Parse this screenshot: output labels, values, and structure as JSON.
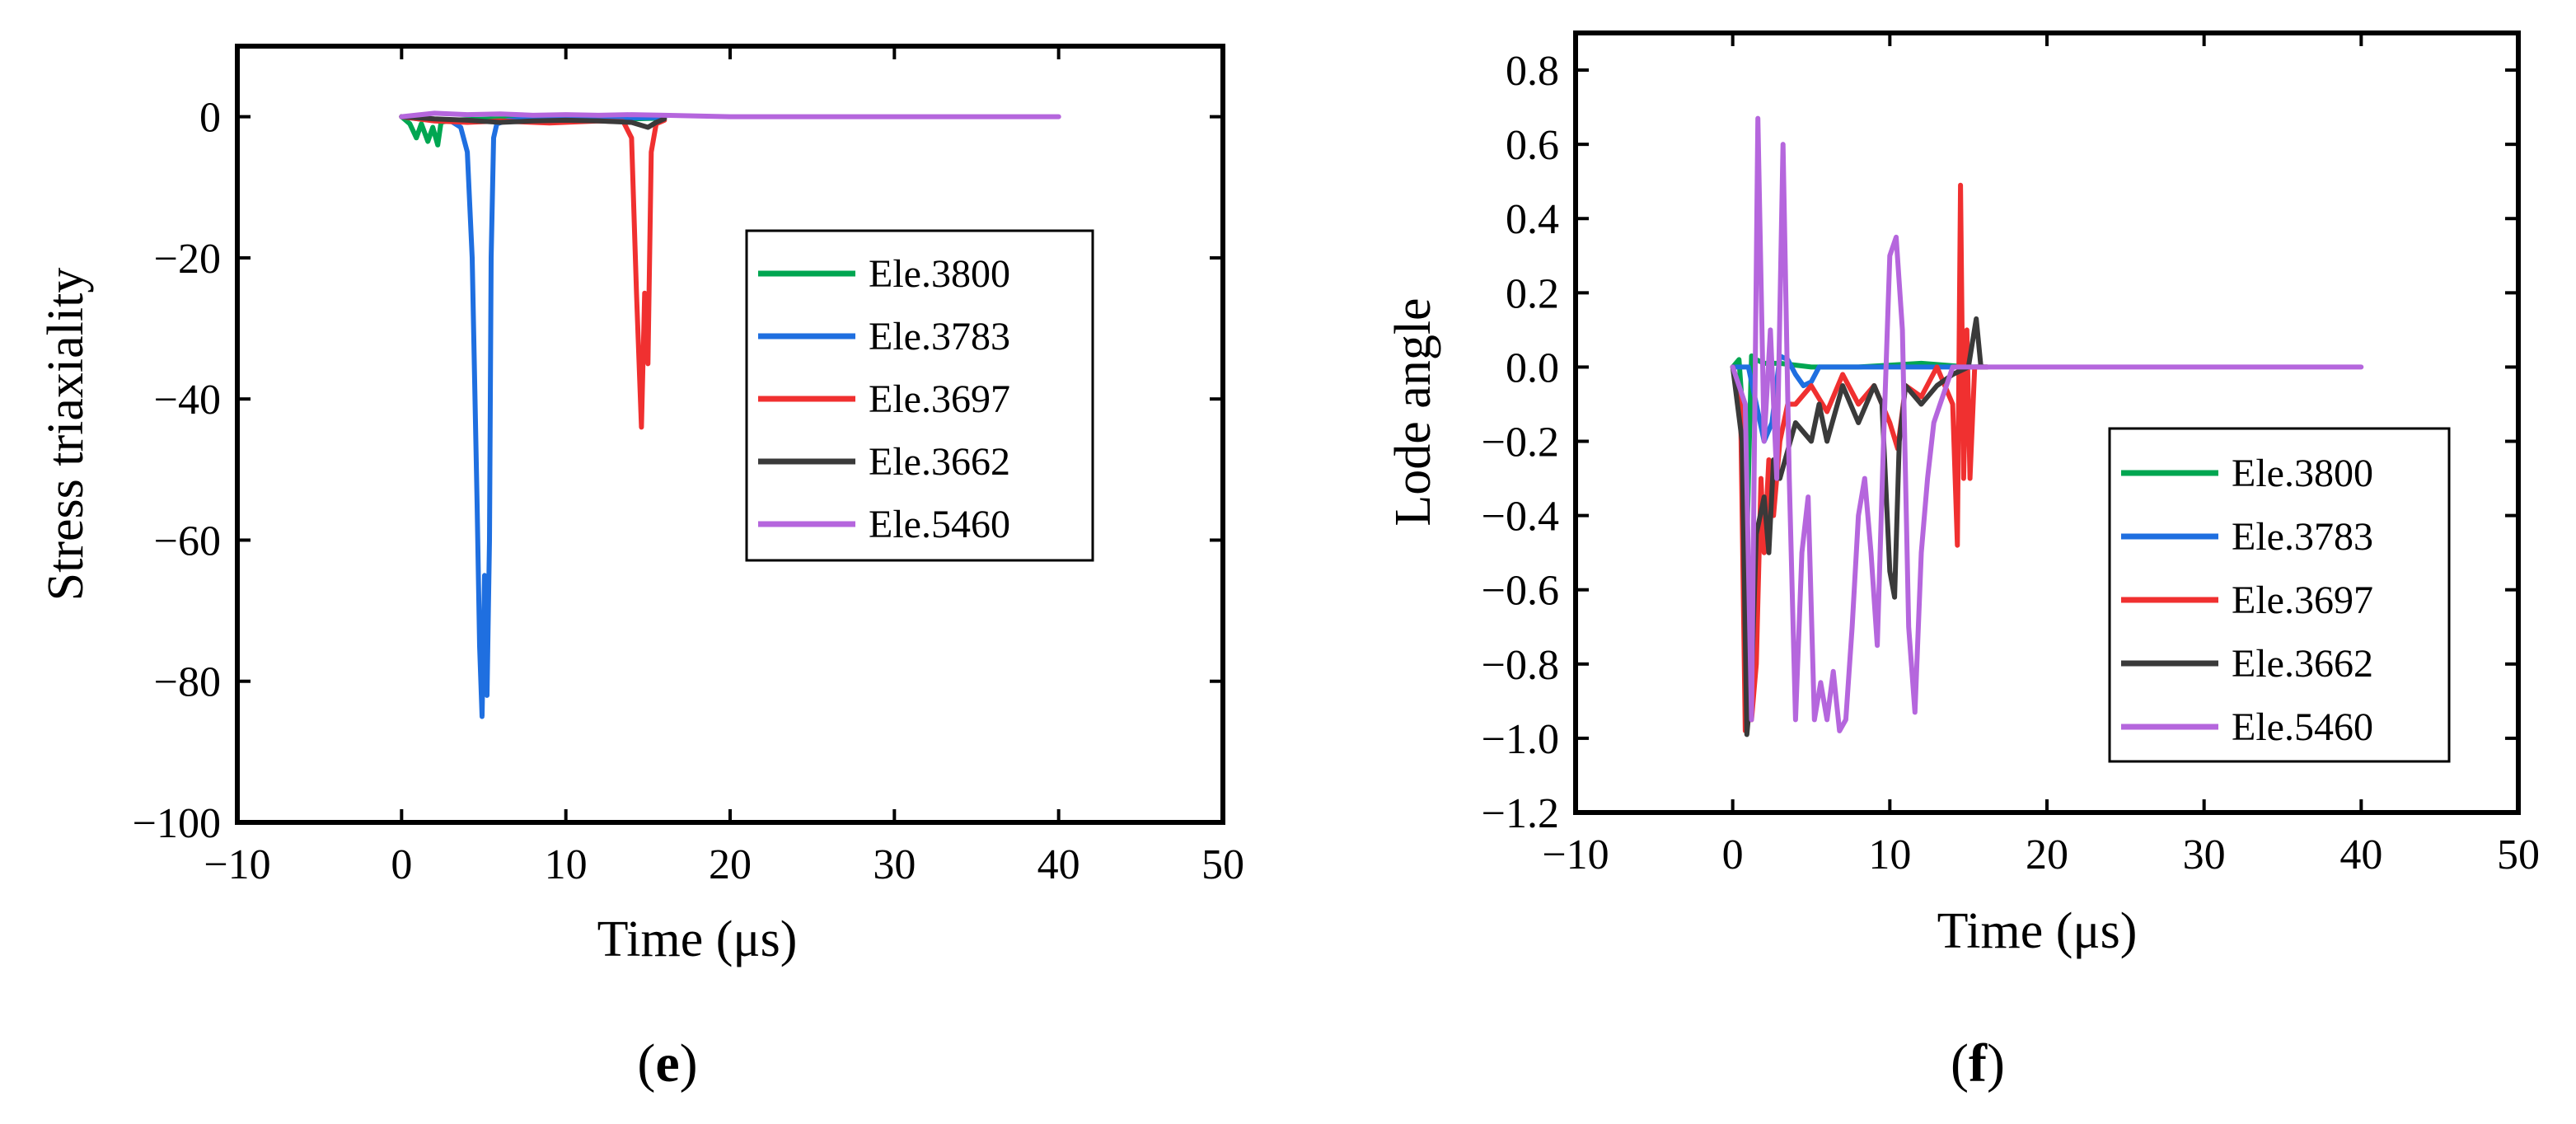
{
  "chart_data": [
    {
      "type": "line",
      "panel_label": "e",
      "xlabel": "Time (μs)",
      "ylabel": "Stress triaxiality",
      "xlim": [
        -10,
        50
      ],
      "ylim": [
        -100,
        10
      ],
      "xticks": [
        -10,
        0,
        10,
        20,
        30,
        40,
        50
      ],
      "yticks": [
        0,
        -20,
        -40,
        -60,
        -80,
        -100
      ],
      "legend_position": "center-right",
      "series": [
        {
          "name": "Ele.3800",
          "color": "#00a651",
          "x": [
            0,
            0.5,
            0.9,
            1.2,
            1.6,
            1.9,
            2.2,
            2.4,
            3.0,
            4.0,
            6.0,
            10.0,
            14.0,
            16.0
          ],
          "y": [
            0,
            -1.0,
            -3.0,
            -1.0,
            -3.5,
            -1.5,
            -4.0,
            -0.8,
            -0.5,
            -0.4,
            -0.3,
            -0.3,
            -0.3,
            -0.2
          ]
        },
        {
          "name": "Ele.3783",
          "color": "#1f6fe0",
          "x": [
            0,
            1.0,
            2.0,
            3.0,
            3.6,
            4.0,
            4.3,
            4.6,
            4.75,
            4.9,
            5.05,
            5.2,
            5.35,
            5.45,
            5.6,
            5.8,
            6.5,
            8.0,
            12.0,
            16.0
          ],
          "y": [
            0,
            -0.3,
            -0.5,
            -0.6,
            -1.5,
            -5,
            -20,
            -55,
            -75,
            -85,
            -65,
            -82,
            -60,
            -20,
            -3,
            -1,
            -0.5,
            -0.3,
            -0.2,
            -0.1
          ]
        },
        {
          "name": "Ele.3697",
          "color": "#f03030",
          "x": [
            0,
            2.0,
            4.0,
            6.0,
            9.0,
            12.0,
            13.5,
            14.0,
            14.3,
            14.6,
            14.8,
            15.0,
            15.2,
            15.5,
            16.0
          ],
          "y": [
            0,
            -0.6,
            -0.8,
            -0.6,
            -0.9,
            -0.6,
            -0.7,
            -3,
            -25,
            -44,
            -25,
            -35,
            -5,
            -1,
            -0.5
          ]
        },
        {
          "name": "Ele.3662",
          "color": "#3a3a3a",
          "x": [
            0,
            2.0,
            4.0,
            6.0,
            8.0,
            10.0,
            12.0,
            14.0,
            15.0,
            15.5,
            16.0
          ],
          "y": [
            0,
            -0.3,
            -0.5,
            -0.8,
            -0.6,
            -0.5,
            -0.6,
            -0.8,
            -1.5,
            -0.8,
            -0.3
          ]
        },
        {
          "name": "Ele.5460",
          "color": "#b566dd",
          "x": [
            0,
            2.0,
            4.0,
            6.0,
            8.0,
            10.0,
            12.0,
            14.0,
            16.0,
            20.0,
            25.0,
            30.0,
            35.0,
            40.0
          ],
          "y": [
            0,
            0.5,
            0.3,
            0.4,
            0.2,
            0.3,
            0.2,
            0.3,
            0.2,
            0,
            0,
            0,
            0,
            0
          ]
        }
      ]
    },
    {
      "type": "line",
      "panel_label": "f",
      "xlabel": "Time (μs)",
      "ylabel": "Lode angle",
      "xlim": [
        -10,
        50
      ],
      "ylim": [
        -1.2,
        0.9
      ],
      "xticks": [
        -10,
        0,
        10,
        20,
        30,
        40,
        50
      ],
      "yticks": [
        0.8,
        0.6,
        0.4,
        0.2,
        0.0,
        -0.2,
        -0.4,
        -0.6,
        -0.8,
        -1.0,
        -1.2
      ],
      "legend_position": "bottom-right",
      "series": [
        {
          "name": "Ele.3800",
          "color": "#00a651",
          "x": [
            0,
            0.4,
            0.6,
            0.8,
            1.0,
            1.2,
            1.5,
            2.0,
            3.0,
            5.0,
            8.0,
            12.0,
            15.0,
            16.0
          ],
          "y": [
            0,
            0.02,
            -0.1,
            -0.68,
            -0.3,
            0.03,
            0.02,
            0.01,
            0.01,
            0.0,
            0.0,
            0.01,
            0.0,
            0.0
          ]
        },
        {
          "name": "Ele.3783",
          "color": "#1f6fe0",
          "x": [
            0,
            1.0,
            1.5,
            2.0,
            2.5,
            3.0,
            3.5,
            4.0,
            4.5,
            5.0,
            5.5,
            6.0,
            8.0,
            12.0,
            16.0
          ],
          "y": [
            0,
            0.0,
            -0.1,
            -0.2,
            -0.15,
            0.03,
            0.02,
            -0.02,
            -0.05,
            -0.04,
            0.0,
            0.0,
            0.0,
            0.0,
            0.0
          ]
        },
        {
          "name": "Ele.3697",
          "color": "#f03030",
          "x": [
            0,
            0.5,
            0.8,
            1.0,
            1.2,
            1.5,
            1.8,
            2.0,
            2.3,
            2.6,
            3.0,
            3.5,
            4.0,
            5.0,
            6.0,
            7.0,
            8.0,
            9.0,
            10.0,
            10.5,
            11.0,
            12.0,
            13.0,
            14.0,
            14.3,
            14.5,
            14.7,
            14.9,
            15.1,
            15.4,
            15.8,
            16.2
          ],
          "y": [
            0,
            -0.1,
            -0.98,
            -0.7,
            -0.95,
            -0.8,
            -0.3,
            -0.5,
            -0.25,
            -0.4,
            -0.2,
            -0.1,
            -0.1,
            -0.05,
            -0.12,
            -0.02,
            -0.1,
            -0.05,
            -0.15,
            -0.22,
            -0.05,
            -0.08,
            0.0,
            -0.1,
            -0.48,
            0.49,
            -0.3,
            0.1,
            -0.3,
            0.0,
            0.0,
            0.0
          ]
        },
        {
          "name": "Ele.3662",
          "color": "#3a3a3a",
          "x": [
            0,
            0.6,
            0.9,
            1.2,
            1.5,
            2.0,
            2.3,
            2.6,
            3.0,
            4.0,
            5.0,
            5.5,
            6.0,
            7.0,
            8.0,
            9.0,
            9.5,
            10.0,
            10.3,
            10.6,
            11.0,
            12.0,
            13.0,
            14.0,
            15.0,
            15.5,
            15.8,
            16.2
          ],
          "y": [
            0,
            -0.2,
            -0.99,
            -0.85,
            -0.45,
            -0.35,
            -0.5,
            -0.25,
            -0.3,
            -0.15,
            -0.2,
            -0.1,
            -0.2,
            -0.05,
            -0.15,
            -0.05,
            -0.1,
            -0.55,
            -0.62,
            -0.2,
            -0.05,
            -0.1,
            -0.05,
            -0.02,
            0.0,
            0.13,
            0.0,
            0.0
          ]
        },
        {
          "name": "Ele.5460",
          "color": "#b566dd",
          "x": [
            0,
            0.8,
            1.2,
            1.6,
            2.0,
            2.4,
            2.8,
            3.2,
            3.6,
            4.0,
            4.4,
            4.8,
            5.2,
            5.6,
            6.0,
            6.4,
            6.8,
            7.2,
            7.6,
            8.0,
            8.4,
            8.8,
            9.2,
            9.6,
            10.0,
            10.4,
            10.8,
            11.2,
            11.6,
            12.0,
            12.4,
            12.8,
            13.2,
            13.6,
            14.0,
            14.5,
            15.0,
            16.0,
            20.0,
            25.0,
            30.0,
            35.0,
            40.0
          ],
          "y": [
            0,
            -0.1,
            -0.95,
            0.67,
            -0.2,
            0.1,
            -0.3,
            0.6,
            -0.3,
            -0.95,
            -0.5,
            -0.35,
            -0.95,
            -0.85,
            -0.95,
            -0.82,
            -0.98,
            -0.95,
            -0.7,
            -0.4,
            -0.3,
            -0.5,
            -0.75,
            -0.2,
            0.3,
            0.35,
            0.1,
            -0.7,
            -0.93,
            -0.5,
            -0.3,
            -0.15,
            -0.1,
            -0.05,
            0.0,
            0.0,
            0.0,
            0.0,
            0.0,
            0.0,
            0.0,
            0.0,
            0.0
          ]
        }
      ]
    }
  ]
}
